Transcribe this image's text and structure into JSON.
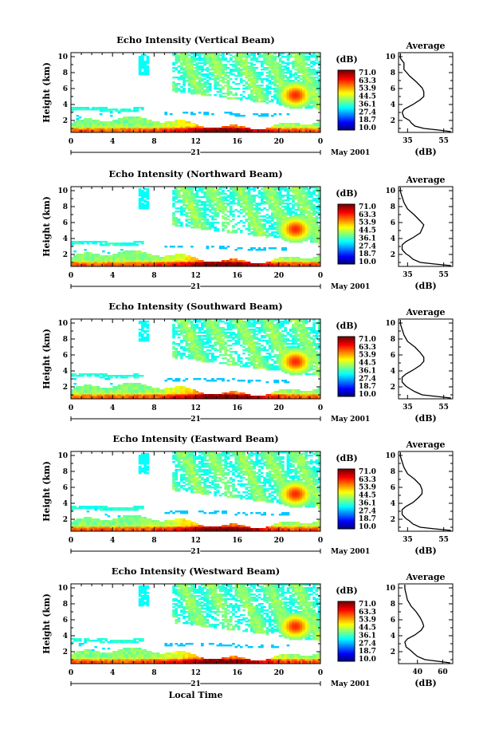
{
  "chart_data": [
    {
      "type": "heatmap",
      "title": "Echo Intensity (Vertical Beam)",
      "ylabel": "Height (km)",
      "xlabel": "",
      "x_ticks": [
        "0",
        "4",
        "8",
        "12",
        "16",
        "20",
        "0"
      ],
      "y_ticks": [
        "2",
        "4",
        "6",
        "8",
        "10"
      ],
      "xlim": [
        0,
        24
      ],
      "ylim": [
        0.5,
        10.5
      ],
      "day_label": "21",
      "date_label": "May 2001",
      "colorbar": {
        "unit": "(dB)",
        "ticks": [
          "71.0",
          "63.3",
          "53.9",
          "44.5",
          "36.1",
          "27.4",
          "18.7",
          "10.0"
        ],
        "range": [
          10.0,
          71.0
        ]
      },
      "average": {
        "title": "Average",
        "xlabel": "(dB)",
        "x_ticks": [
          "35",
          "55"
        ],
        "xlim": [
          30,
          60
        ],
        "profile": [
          [
            59,
            0.6
          ],
          [
            52,
            0.8
          ],
          [
            44,
            1.0
          ],
          [
            39,
            1.3
          ],
          [
            37,
            1.7
          ],
          [
            36,
            2.0
          ],
          [
            33,
            2.4
          ],
          [
            32,
            3.0
          ],
          [
            33,
            3.4
          ],
          [
            38,
            4.0
          ],
          [
            42,
            4.6
          ],
          [
            44,
            5.0
          ],
          [
            44,
            5.6
          ],
          [
            43,
            6.1
          ],
          [
            40,
            6.8
          ],
          [
            36,
            7.6
          ],
          [
            33,
            8.4
          ],
          [
            33,
            9.2
          ],
          [
            31,
            9.8
          ],
          [
            31,
            10.4
          ]
        ]
      }
    },
    {
      "type": "heatmap",
      "title": "Echo Intensity (Northward Beam)",
      "ylabel": "Height (km)",
      "xlabel": "",
      "x_ticks": [
        "0",
        "4",
        "8",
        "12",
        "16",
        "20",
        "0"
      ],
      "y_ticks": [
        "2",
        "4",
        "6",
        "8",
        "10"
      ],
      "xlim": [
        0,
        24
      ],
      "ylim": [
        0.5,
        10.5
      ],
      "day_label": "21",
      "date_label": "May 2001",
      "colorbar": {
        "unit": "(dB)",
        "ticks": [
          "71.0",
          "63.3",
          "53.9",
          "44.5",
          "36.1",
          "27.4",
          "18.7",
          "10.0"
        ],
        "range": [
          10.0,
          71.0
        ]
      },
      "average": {
        "title": "Average",
        "xlabel": "(dB)",
        "x_ticks": [
          "35",
          "55"
        ],
        "xlim": [
          30,
          60
        ],
        "profile": [
          [
            59,
            0.6
          ],
          [
            50,
            0.8
          ],
          [
            42,
            1.0
          ],
          [
            38,
            1.4
          ],
          [
            36,
            1.8
          ],
          [
            34,
            2.1
          ],
          [
            32,
            2.6
          ],
          [
            32,
            3.2
          ],
          [
            34,
            3.6
          ],
          [
            38,
            4.1
          ],
          [
            42,
            4.7
          ],
          [
            43,
            5.2
          ],
          [
            44,
            5.7
          ],
          [
            42,
            6.2
          ],
          [
            39,
            6.9
          ],
          [
            35,
            7.7
          ],
          [
            33,
            8.5
          ],
          [
            32,
            9.2
          ],
          [
            31,
            9.9
          ],
          [
            31,
            10.4
          ]
        ]
      }
    },
    {
      "type": "heatmap",
      "title": "Echo Intensity (Southward Beam)",
      "ylabel": "Height (km)",
      "xlabel": "",
      "x_ticks": [
        "0",
        "4",
        "8",
        "12",
        "16",
        "20",
        "0"
      ],
      "y_ticks": [
        "2",
        "4",
        "6",
        "8",
        "10"
      ],
      "xlim": [
        0,
        24
      ],
      "ylim": [
        0.5,
        10.5
      ],
      "day_label": "21",
      "date_label": "May 2001",
      "colorbar": {
        "unit": "(dB)",
        "ticks": [
          "71.0",
          "63.3",
          "53.9",
          "44.5",
          "36.1",
          "27.4",
          "18.7",
          "10.0"
        ],
        "range": [
          10.0,
          71.0
        ]
      },
      "average": {
        "title": "Average",
        "xlabel": "(dB)",
        "x_ticks": [
          "35",
          "55"
        ],
        "xlim": [
          30,
          60
        ],
        "profile": [
          [
            59,
            0.6
          ],
          [
            51,
            0.8
          ],
          [
            43,
            1.0
          ],
          [
            39,
            1.4
          ],
          [
            36,
            1.8
          ],
          [
            34,
            2.1
          ],
          [
            32,
            2.6
          ],
          [
            32,
            3.2
          ],
          [
            34,
            3.6
          ],
          [
            38,
            4.1
          ],
          [
            42,
            4.7
          ],
          [
            44,
            5.2
          ],
          [
            44,
            5.7
          ],
          [
            42,
            6.3
          ],
          [
            39,
            7.0
          ],
          [
            35,
            7.7
          ],
          [
            33,
            8.5
          ],
          [
            32,
            9.2
          ],
          [
            31,
            9.9
          ],
          [
            31,
            10.4
          ]
        ]
      }
    },
    {
      "type": "heatmap",
      "title": "Echo Intensity (Eastward Beam)",
      "ylabel": "Height (km)",
      "xlabel": "",
      "x_ticks": [
        "0",
        "4",
        "8",
        "12",
        "16",
        "20",
        "0"
      ],
      "y_ticks": [
        "2",
        "4",
        "6",
        "8",
        "10"
      ],
      "xlim": [
        0,
        24
      ],
      "ylim": [
        0.5,
        10.5
      ],
      "day_label": "21",
      "date_label": "May 2001",
      "colorbar": {
        "unit": "(dB)",
        "ticks": [
          "71.0",
          "63.3",
          "53.9",
          "44.5",
          "36.1",
          "27.4",
          "18.7",
          "10.0"
        ],
        "range": [
          10.0,
          71.0
        ]
      },
      "average": {
        "title": "Average",
        "xlabel": "(dB)",
        "x_ticks": [
          "35",
          "55"
        ],
        "xlim": [
          30,
          60
        ],
        "profile": [
          [
            59,
            0.6
          ],
          [
            50,
            0.8
          ],
          [
            42,
            1.0
          ],
          [
            38,
            1.4
          ],
          [
            36,
            1.8
          ],
          [
            34,
            2.1
          ],
          [
            32,
            2.6
          ],
          [
            32,
            3.2
          ],
          [
            34,
            3.6
          ],
          [
            38,
            4.1
          ],
          [
            41,
            4.7
          ],
          [
            43,
            5.2
          ],
          [
            43,
            5.7
          ],
          [
            42,
            6.3
          ],
          [
            39,
            7.0
          ],
          [
            35,
            7.7
          ],
          [
            33,
            8.5
          ],
          [
            32,
            9.2
          ],
          [
            31,
            9.9
          ],
          [
            31,
            10.4
          ]
        ]
      }
    },
    {
      "type": "heatmap",
      "title": "Echo Intensity (Westward Beam)",
      "ylabel": "Height (km)",
      "xlabel": "Local Time",
      "x_ticks": [
        "0",
        "4",
        "8",
        "12",
        "16",
        "20",
        "0"
      ],
      "y_ticks": [
        "2",
        "4",
        "6",
        "8",
        "10"
      ],
      "xlim": [
        0,
        24
      ],
      "ylim": [
        0.5,
        10.5
      ],
      "day_label": "21",
      "date_label": "May 2001",
      "colorbar": {
        "unit": "(dB)",
        "ticks": [
          "71.0",
          "63.3",
          "53.9",
          "44.5",
          "36.1",
          "27.4",
          "18.7",
          "10.0"
        ],
        "range": [
          10.0,
          71.0
        ]
      },
      "average": {
        "title": "Average",
        "xlabel": "(dB)",
        "x_ticks": [
          "40",
          "60"
        ],
        "xlim": [
          25,
          68
        ],
        "profile": [
          [
            66,
            0.6
          ],
          [
            56,
            0.8
          ],
          [
            46,
            1.0
          ],
          [
            40,
            1.4
          ],
          [
            37,
            1.8
          ],
          [
            35,
            2.1
          ],
          [
            31,
            2.6
          ],
          [
            30,
            3.2
          ],
          [
            32,
            3.6
          ],
          [
            38,
            4.1
          ],
          [
            43,
            4.7
          ],
          [
            45,
            5.2
          ],
          [
            44,
            5.7
          ],
          [
            42,
            6.3
          ],
          [
            39,
            7.0
          ],
          [
            35,
            7.7
          ],
          [
            32,
            8.5
          ],
          [
            31,
            9.2
          ],
          [
            30,
            9.9
          ],
          [
            30,
            10.4
          ]
        ]
      }
    }
  ]
}
